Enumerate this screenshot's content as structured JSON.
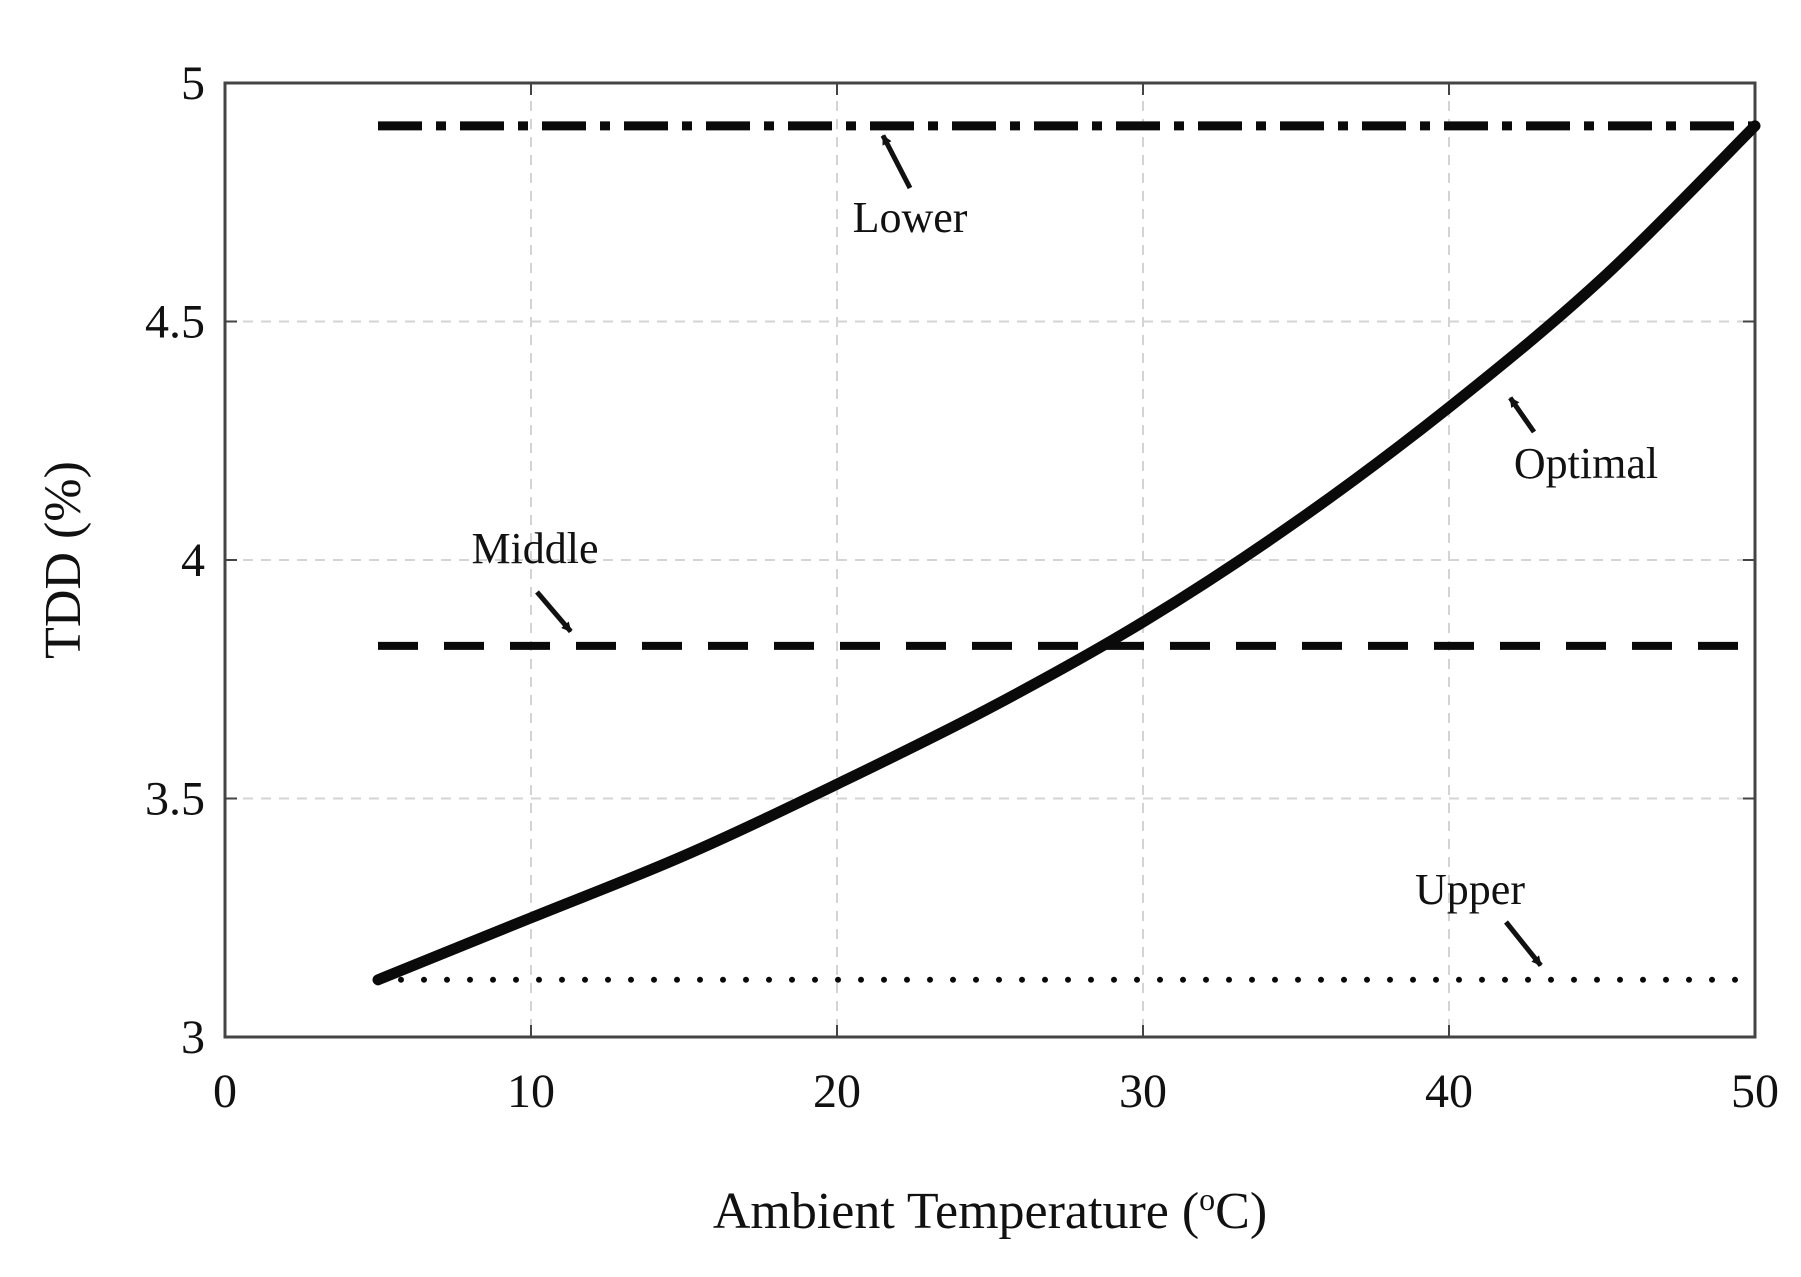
{
  "chart_data": {
    "type": "line",
    "title": "",
    "xlabel_prefix": "Ambient Temperature (",
    "xlabel_sup": "o",
    "xlabel_suffix": "C)",
    "ylabel": "TDD (%)",
    "xlim": [
      0,
      50
    ],
    "ylim": [
      3,
      5
    ],
    "xticks": [
      0,
      10,
      20,
      30,
      40,
      50
    ],
    "yticks": [
      3,
      3.5,
      4,
      4.5,
      5
    ],
    "xtick_labels": [
      "0",
      "10",
      "20",
      "30",
      "40",
      "50"
    ],
    "ytick_labels": [
      "3",
      "3.5",
      "4",
      "4.5",
      "5"
    ],
    "grid": true,
    "series": [
      {
        "name": "Lower",
        "style": "dash-dot",
        "x": [
          5,
          50
        ],
        "y": [
          4.91,
          4.91
        ]
      },
      {
        "name": "Middle",
        "style": "dashed",
        "x": [
          5,
          50
        ],
        "y": [
          3.82,
          3.82
        ]
      },
      {
        "name": "Upper",
        "style": "dotted",
        "x": [
          5,
          50
        ],
        "y": [
          3.12,
          3.12
        ]
      },
      {
        "name": "Optimal",
        "style": "solid",
        "x": [
          5,
          10,
          15,
          20,
          25,
          30,
          35,
          40,
          45,
          50
        ],
        "y": [
          3.12,
          3.25,
          3.38,
          3.53,
          3.69,
          3.87,
          4.08,
          4.32,
          4.59,
          4.91
        ]
      }
    ],
    "annotations": [
      {
        "text": "Lower",
        "arrow_to": [
          21.5,
          4.89
        ]
      },
      {
        "text": "Middle",
        "arrow_to": [
          11.3,
          3.85
        ]
      },
      {
        "text": "Optimal",
        "arrow_to": [
          42.0,
          4.34
        ]
      },
      {
        "text": "Upper",
        "arrow_to": [
          43.0,
          3.15
        ]
      }
    ]
  }
}
